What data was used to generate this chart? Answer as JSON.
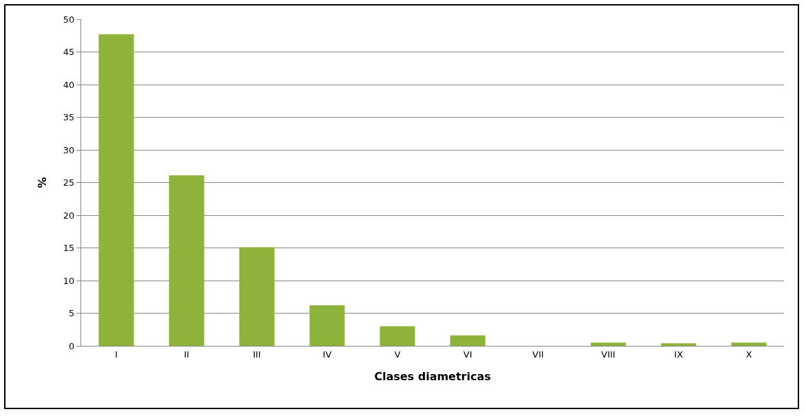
{
  "chart_data": {
    "type": "bar",
    "xlabel": "Clases diametricas",
    "ylabel": "%",
    "categories": [
      "I",
      "II",
      "III",
      "IV",
      "V",
      "VI",
      "VII",
      "VIII",
      "IX",
      "X"
    ],
    "series": [
      {
        "color": "#8db33a",
        "values": [
          47.7,
          26.1,
          15.1,
          6.2,
          3.0,
          1.6,
          0,
          0.5,
          0.4,
          0.5
        ]
      }
    ],
    "ylim": [
      0,
      50
    ],
    "yticks": [
      0,
      5,
      10,
      15,
      20,
      25,
      30,
      35,
      40,
      45,
      50
    ],
    "grid": "y"
  }
}
